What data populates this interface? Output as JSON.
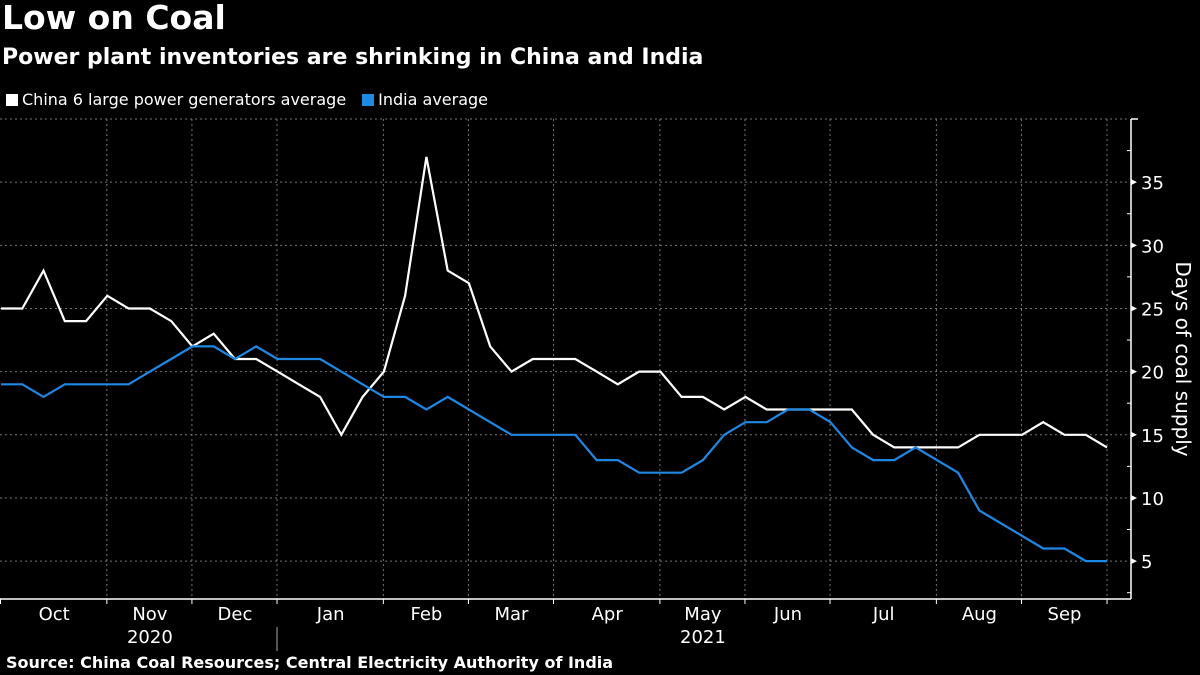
{
  "header": {
    "title": "Low on Coal",
    "subtitle": "Power plant inventories are shrinking in China and India"
  },
  "legend": [
    {
      "label": "China 6 large power generators average",
      "color": "#ffffff"
    },
    {
      "label": "India average",
      "color": "#1e88e5"
    }
  ],
  "footer": {
    "source": "Source: China Coal Resources; Central Electricity Authority of India"
  },
  "chart_data": {
    "type": "line",
    "title": "Low on Coal",
    "subtitle": "Power plant inventories are shrinking in China and India",
    "xlabel": "",
    "ylabel": "Days of coal supply",
    "ylim": [
      2,
      40
    ],
    "yticks": [
      5,
      10,
      15,
      20,
      25,
      30,
      35
    ],
    "y_axis_position": "right",
    "grid": true,
    "legend_position": "top-left",
    "x_frequency": "weekly",
    "x_start": "Oct 2020",
    "x_end": "Sep 2021",
    "month_ticks": [
      {
        "label": "Oct",
        "start_index": 0,
        "weeks": 5
      },
      {
        "label": "Nov",
        "start_index": 5,
        "weeks": 4
      },
      {
        "label": "Dec",
        "start_index": 9,
        "weeks": 4
      },
      {
        "label": "Jan",
        "start_index": 13,
        "weeks": 5
      },
      {
        "label": "Feb",
        "start_index": 18,
        "weeks": 4
      },
      {
        "label": "Mar",
        "start_index": 22,
        "weeks": 4
      },
      {
        "label": "Apr",
        "start_index": 26,
        "weeks": 5
      },
      {
        "label": "May",
        "start_index": 31,
        "weeks": 4
      },
      {
        "label": "Jun",
        "start_index": 35,
        "weeks": 4
      },
      {
        "label": "Jul",
        "start_index": 39,
        "weeks": 5
      },
      {
        "label": "Aug",
        "start_index": 44,
        "weeks": 4
      },
      {
        "label": "Sep",
        "start_index": 48,
        "weeks": 4
      }
    ],
    "year_labels": [
      {
        "label": "2020",
        "month": "Nov"
      },
      {
        "label": "2021",
        "month": "May"
      }
    ],
    "series": [
      {
        "name": "China 6 large power generators average",
        "color": "#ffffff",
        "values": [
          25,
          25,
          28,
          24,
          24,
          26,
          25,
          25,
          24,
          22,
          23,
          21,
          21,
          20,
          19,
          18,
          15,
          18,
          20,
          26,
          37,
          28,
          27,
          22,
          20,
          21,
          21,
          21,
          20,
          19,
          20,
          20,
          18,
          18,
          17,
          18,
          17,
          17,
          17,
          17,
          17,
          15,
          14,
          14,
          14,
          14,
          15,
          15,
          15,
          16,
          15,
          15,
          14
        ]
      },
      {
        "name": "India average",
        "color": "#1e88e5",
        "values": [
          19,
          19,
          18,
          19,
          19,
          19,
          19,
          20,
          21,
          22,
          22,
          21,
          22,
          21,
          21,
          21,
          20,
          19,
          18,
          18,
          17,
          18,
          17,
          16,
          15,
          15,
          15,
          15,
          13,
          13,
          12,
          12,
          12,
          13,
          15,
          16,
          16,
          17,
          17,
          16,
          14,
          13,
          13,
          14,
          13,
          12,
          9,
          8,
          7,
          6,
          6,
          5,
          5
        ]
      }
    ]
  }
}
